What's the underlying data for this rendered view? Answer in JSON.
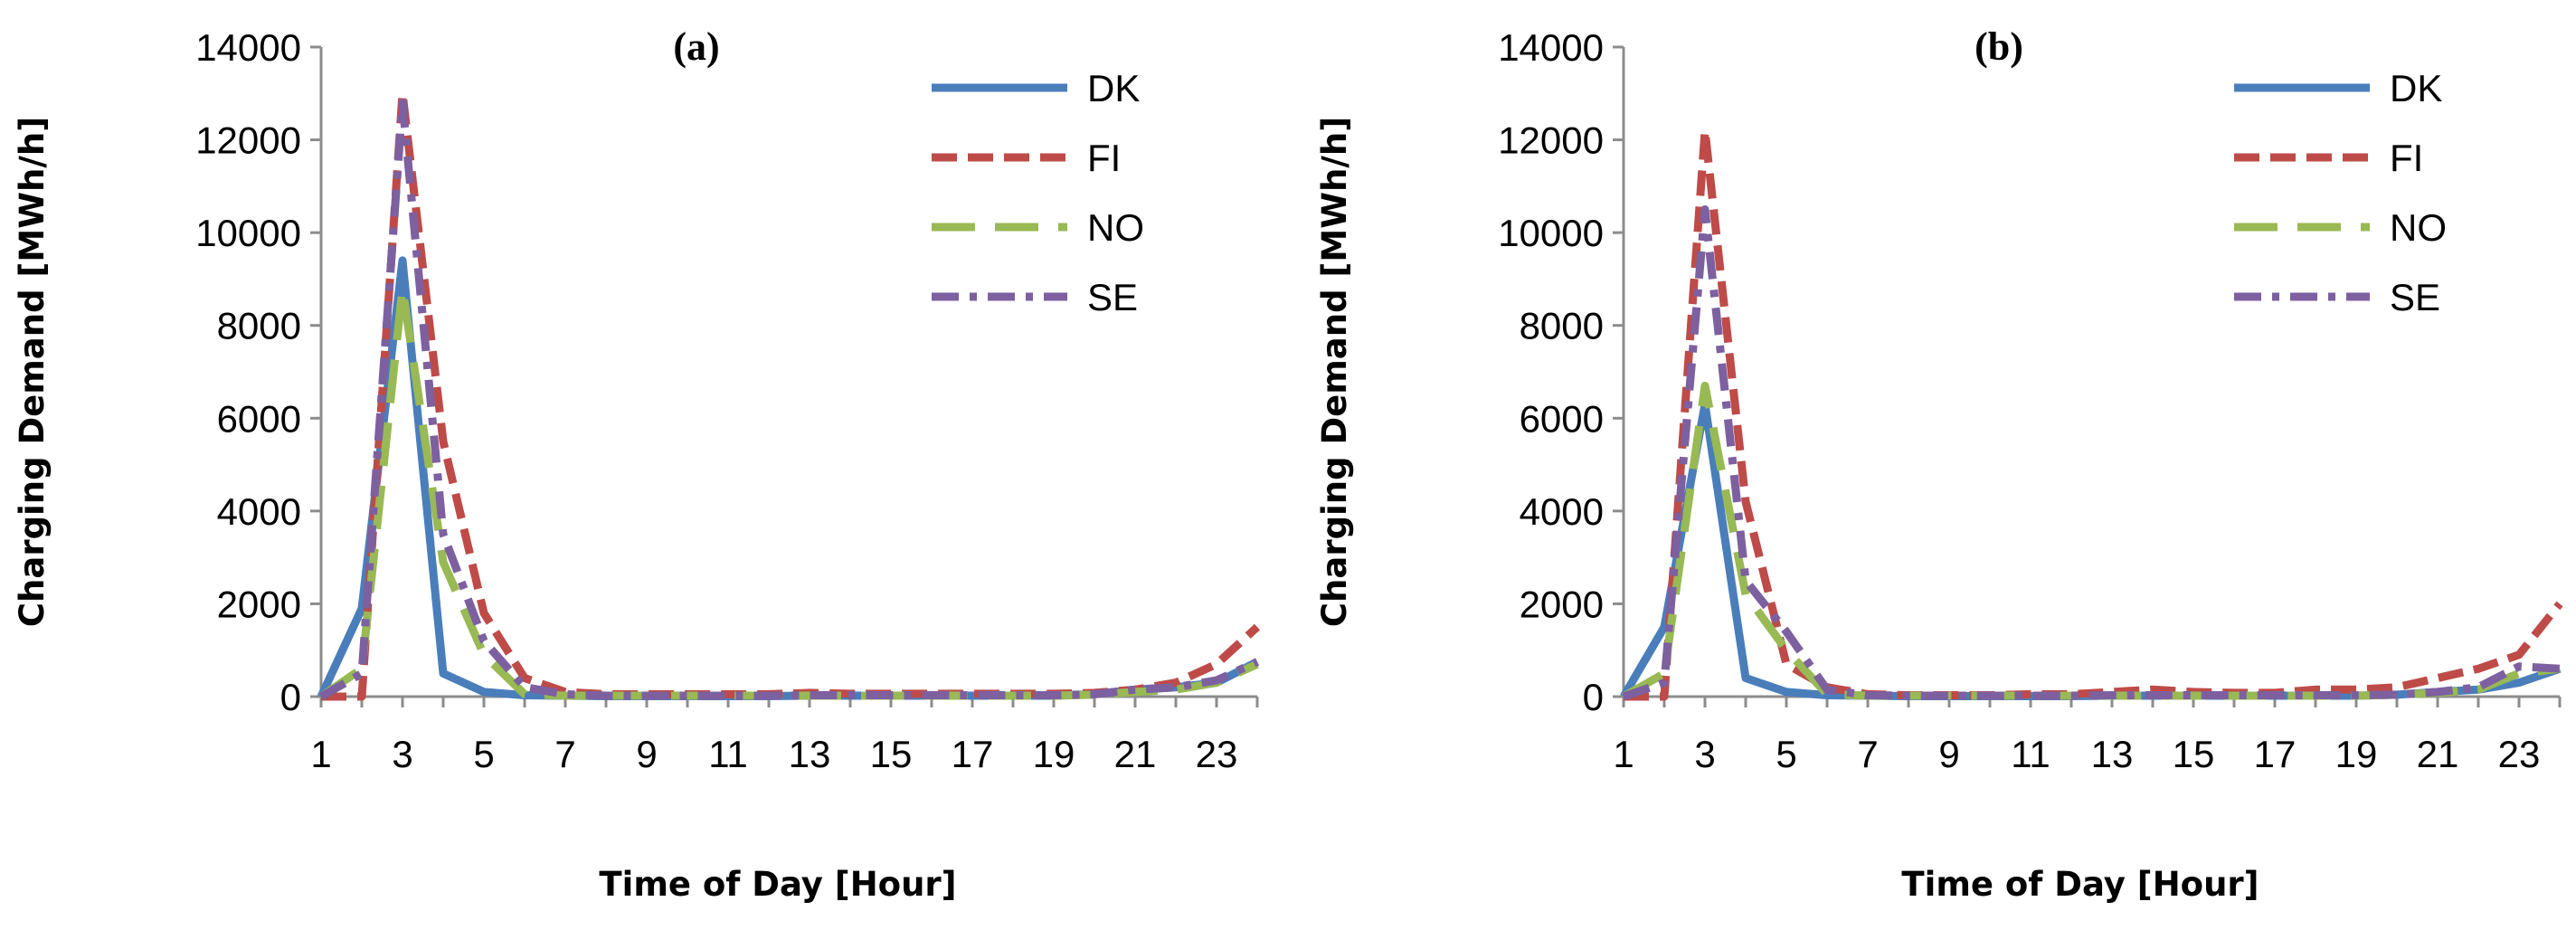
{
  "chart_data": [
    {
      "type": "line",
      "title": "(a)",
      "xlabel": "Time of Day [Hour]",
      "ylabel": "Charging Demand [MWh/h]",
      "ylim": [
        0,
        14000
      ],
      "yticks": [
        0,
        2000,
        4000,
        6000,
        8000,
        10000,
        12000,
        14000
      ],
      "xlim": [
        1,
        24
      ],
      "xticks": [
        "1",
        "3",
        "5",
        "7",
        "9",
        "11",
        "13",
        "15",
        "17",
        "19",
        "21",
        "23"
      ],
      "x": [
        1,
        2,
        3,
        4,
        5,
        6,
        7,
        8,
        9,
        10,
        11,
        12,
        13,
        14,
        15,
        16,
        17,
        18,
        19,
        20,
        21,
        22,
        23,
        24
      ],
      "legend_position": "top-right",
      "series": [
        {
          "name": "DK",
          "color": "#4a7ebb",
          "style": "solid",
          "values": [
            0,
            1900,
            9400,
            500,
            100,
            30,
            20,
            10,
            10,
            10,
            10,
            10,
            20,
            20,
            20,
            20,
            20,
            20,
            20,
            50,
            150,
            200,
            300,
            750
          ]
        },
        {
          "name": "FI",
          "color": "#be4b48",
          "style": "dash",
          "values": [
            0,
            0,
            13000,
            5500,
            1800,
            400,
            100,
            50,
            50,
            50,
            50,
            50,
            80,
            60,
            60,
            60,
            60,
            60,
            60,
            80,
            150,
            300,
            700,
            1500
          ]
        },
        {
          "name": "NO",
          "color": "#98b954",
          "style": "longdash",
          "values": [
            0,
            600,
            8800,
            2900,
            900,
            50,
            20,
            20,
            20,
            20,
            20,
            20,
            20,
            20,
            20,
            20,
            20,
            20,
            20,
            40,
            100,
            150,
            300,
            700
          ]
        },
        {
          "name": "SE",
          "color": "#7d60a0",
          "style": "dashdot",
          "values": [
            0,
            500,
            12800,
            3500,
            1200,
            200,
            50,
            20,
            20,
            20,
            20,
            20,
            30,
            30,
            30,
            30,
            30,
            30,
            30,
            50,
            150,
            200,
            350,
            750
          ]
        }
      ]
    },
    {
      "type": "line",
      "title": "(b)",
      "xlabel": "Time of Day [Hour]",
      "ylabel": "Charging Demand [MWh/h]",
      "ylim": [
        0,
        14000
      ],
      "yticks": [
        0,
        2000,
        4000,
        6000,
        8000,
        10000,
        12000,
        14000
      ],
      "xlim": [
        1,
        24
      ],
      "xticks": [
        "1",
        "3",
        "5",
        "7",
        "9",
        "11",
        "13",
        "15",
        "17",
        "19",
        "21",
        "23"
      ],
      "x": [
        1,
        2,
        3,
        4,
        5,
        6,
        7,
        8,
        9,
        10,
        11,
        12,
        13,
        14,
        15,
        16,
        17,
        18,
        19,
        20,
        21,
        22,
        23,
        24
      ],
      "legend_position": "top-right",
      "series": [
        {
          "name": "DK",
          "color": "#4a7ebb",
          "style": "solid",
          "values": [
            0,
            1500,
            6300,
            400,
            100,
            30,
            20,
            10,
            10,
            10,
            10,
            10,
            20,
            20,
            20,
            20,
            20,
            20,
            20,
            40,
            100,
            150,
            300,
            600
          ]
        },
        {
          "name": "FI",
          "color": "#be4b48",
          "style": "dash",
          "values": [
            0,
            0,
            12200,
            4200,
            700,
            200,
            50,
            30,
            30,
            30,
            50,
            50,
            100,
            150,
            100,
            80,
            80,
            150,
            150,
            200,
            400,
            600,
            900,
            2000
          ]
        },
        {
          "name": "NO",
          "color": "#98b954",
          "style": "longdash",
          "values": [
            0,
            500,
            6700,
            2200,
            1000,
            50,
            20,
            20,
            20,
            20,
            20,
            20,
            20,
            20,
            20,
            20,
            20,
            20,
            20,
            40,
            80,
            150,
            500,
            600
          ]
        },
        {
          "name": "SE",
          "color": "#7d60a0",
          "style": "dashdot",
          "values": [
            0,
            300,
            10500,
            2500,
            1400,
            150,
            30,
            20,
            20,
            20,
            20,
            20,
            30,
            30,
            30,
            30,
            30,
            30,
            30,
            40,
            100,
            200,
            650,
            600
          ]
        }
      ]
    }
  ]
}
